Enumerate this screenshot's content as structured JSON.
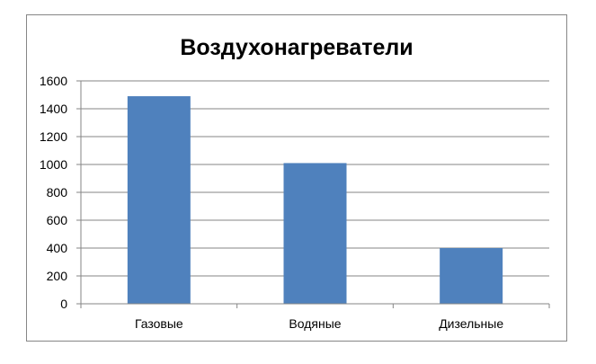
{
  "chart_data": {
    "type": "bar",
    "title": "Воздухонагреватели",
    "xlabel": "",
    "ylabel": "",
    "categories": [
      "Газовые",
      "Водяные",
      "Дизельные"
    ],
    "values": [
      1490,
      1010,
      400
    ],
    "ylim": [
      0,
      1600
    ],
    "yticks": [
      0,
      200,
      400,
      600,
      800,
      1000,
      1200,
      1400,
      1600
    ],
    "grid": true,
    "legend": "none",
    "bar_color": "#4F81BD",
    "grid_color": "#868686"
  }
}
